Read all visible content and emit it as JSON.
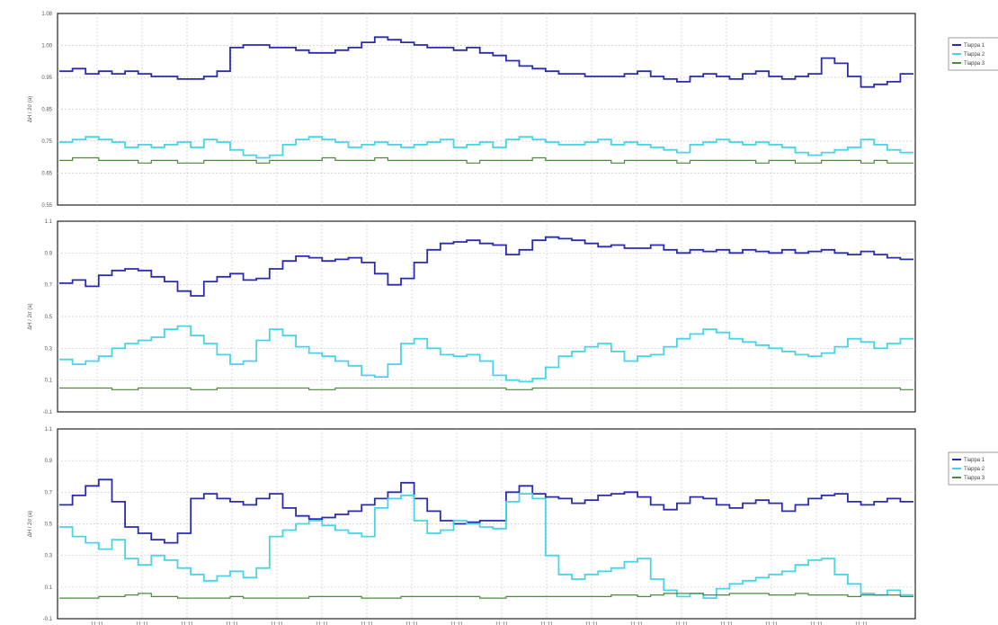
{
  "chart_data": [
    {
      "type": "line",
      "ylabel": "ΔH / 2σ (a)",
      "ylim": [
        0.35,
        1.08
      ],
      "yticks": [
        "1.08",
        "1.00",
        "0.95",
        "0.85",
        "0.75",
        "0.65",
        "0.55"
      ],
      "legend": "top-right",
      "grid": true,
      "series": [
        {
          "name": "Tiарра 1",
          "color": "#2b2bb0",
          "values": [
            0.86,
            0.87,
            0.85,
            0.86,
            0.85,
            0.86,
            0.85,
            0.84,
            0.84,
            0.83,
            0.83,
            0.84,
            0.86,
            0.95,
            0.96,
            0.96,
            0.95,
            0.95,
            0.94,
            0.93,
            0.93,
            0.94,
            0.95,
            0.97,
            0.99,
            0.98,
            0.97,
            0.96,
            0.95,
            0.95,
            0.94,
            0.95,
            0.93,
            0.92,
            0.9,
            0.88,
            0.87,
            0.86,
            0.85,
            0.85,
            0.84,
            0.84,
            0.84,
            0.85,
            0.86,
            0.84,
            0.83,
            0.82,
            0.84,
            0.85,
            0.84,
            0.83,
            0.85,
            0.86,
            0.84,
            0.83,
            0.84,
            0.85,
            0.91,
            0.89,
            0.84,
            0.8,
            0.81,
            0.82,
            0.85
          ]
        },
        {
          "name": "Tiарра 2",
          "color": "#48d4e4",
          "values": [
            0.59,
            0.6,
            0.61,
            0.6,
            0.59,
            0.57,
            0.58,
            0.57,
            0.58,
            0.59,
            0.57,
            0.6,
            0.59,
            0.56,
            0.54,
            0.53,
            0.54,
            0.58,
            0.6,
            0.61,
            0.6,
            0.59,
            0.57,
            0.58,
            0.59,
            0.58,
            0.57,
            0.58,
            0.59,
            0.6,
            0.57,
            0.58,
            0.59,
            0.57,
            0.6,
            0.61,
            0.6,
            0.59,
            0.58,
            0.58,
            0.59,
            0.6,
            0.58,
            0.59,
            0.58,
            0.57,
            0.56,
            0.55,
            0.58,
            0.59,
            0.6,
            0.59,
            0.58,
            0.59,
            0.58,
            0.57,
            0.55,
            0.54,
            0.55,
            0.56,
            0.57,
            0.6,
            0.58,
            0.56,
            0.55
          ]
        },
        {
          "name": "Tiарра 3",
          "color": "#4a8a3a",
          "values": [
            0.52,
            0.53,
            0.53,
            0.52,
            0.52,
            0.52,
            0.51,
            0.52,
            0.52,
            0.51,
            0.51,
            0.52,
            0.52,
            0.52,
            0.52,
            0.51,
            0.52,
            0.52,
            0.52,
            0.52,
            0.53,
            0.52,
            0.52,
            0.52,
            0.53,
            0.52,
            0.52,
            0.52,
            0.52,
            0.52,
            0.52,
            0.51,
            0.52,
            0.52,
            0.52,
            0.52,
            0.53,
            0.52,
            0.52,
            0.52,
            0.52,
            0.52,
            0.51,
            0.52,
            0.52,
            0.52,
            0.52,
            0.51,
            0.52,
            0.52,
            0.52,
            0.52,
            0.52,
            0.51,
            0.52,
            0.52,
            0.51,
            0.51,
            0.52,
            0.52,
            0.52,
            0.51,
            0.52,
            0.51,
            0.51
          ]
        }
      ]
    },
    {
      "type": "line",
      "ylabel": "ΔH / 2σ (a)",
      "ylim": [
        -0.1,
        1.1
      ],
      "yticks": [
        "1.1",
        "0.9",
        "0.7",
        "0.5",
        "0.3",
        "0.1",
        "-0.1"
      ],
      "grid": true,
      "series": [
        {
          "name": "Tiарра 1",
          "color": "#2b2bb0",
          "values": [
            0.71,
            0.73,
            0.69,
            0.76,
            0.79,
            0.8,
            0.79,
            0.75,
            0.72,
            0.66,
            0.63,
            0.72,
            0.75,
            0.77,
            0.73,
            0.74,
            0.8,
            0.85,
            0.88,
            0.87,
            0.85,
            0.86,
            0.87,
            0.84,
            0.77,
            0.7,
            0.74,
            0.84,
            0.92,
            0.96,
            0.97,
            0.98,
            0.96,
            0.95,
            0.89,
            0.92,
            0.98,
            1.0,
            0.99,
            0.98,
            0.96,
            0.94,
            0.95,
            0.93,
            0.93,
            0.95,
            0.92,
            0.9,
            0.92,
            0.91,
            0.92,
            0.9,
            0.92,
            0.91,
            0.9,
            0.92,
            0.9,
            0.91,
            0.92,
            0.9,
            0.89,
            0.91,
            0.89,
            0.87,
            0.86
          ]
        },
        {
          "name": "Tiарра 2",
          "color": "#48d4e4",
          "values": [
            0.23,
            0.2,
            0.22,
            0.25,
            0.3,
            0.33,
            0.35,
            0.37,
            0.42,
            0.44,
            0.38,
            0.33,
            0.26,
            0.2,
            0.22,
            0.35,
            0.42,
            0.38,
            0.31,
            0.27,
            0.25,
            0.22,
            0.19,
            0.13,
            0.12,
            0.2,
            0.33,
            0.36,
            0.3,
            0.26,
            0.25,
            0.26,
            0.22,
            0.13,
            0.1,
            0.09,
            0.11,
            0.18,
            0.25,
            0.28,
            0.31,
            0.33,
            0.28,
            0.22,
            0.25,
            0.26,
            0.31,
            0.36,
            0.39,
            0.42,
            0.4,
            0.36,
            0.34,
            0.32,
            0.3,
            0.28,
            0.26,
            0.25,
            0.27,
            0.31,
            0.36,
            0.34,
            0.3,
            0.33,
            0.36
          ]
        },
        {
          "name": "Tiарра 3",
          "color": "#4a8a3a",
          "values": [
            0.05,
            0.05,
            0.05,
            0.05,
            0.04,
            0.04,
            0.05,
            0.05,
            0.05,
            0.05,
            0.04,
            0.04,
            0.05,
            0.05,
            0.05,
            0.05,
            0.05,
            0.05,
            0.05,
            0.04,
            0.04,
            0.05,
            0.05,
            0.05,
            0.05,
            0.05,
            0.05,
            0.05,
            0.05,
            0.05,
            0.05,
            0.05,
            0.05,
            0.05,
            0.04,
            0.04,
            0.05,
            0.05,
            0.05,
            0.05,
            0.05,
            0.05,
            0.05,
            0.05,
            0.05,
            0.05,
            0.05,
            0.05,
            0.05,
            0.05,
            0.05,
            0.05,
            0.05,
            0.05,
            0.05,
            0.05,
            0.05,
            0.05,
            0.05,
            0.05,
            0.05,
            0.05,
            0.05,
            0.05,
            0.04
          ]
        }
      ]
    },
    {
      "type": "line",
      "ylabel": "ΔH / 2σ (a)",
      "ylim": [
        -0.1,
        1.1
      ],
      "yticks": [
        "1.1",
        "0.9",
        "0.7",
        "0.5",
        "0.3",
        "0.1",
        "-0.1"
      ],
      "legend": "top-right",
      "grid": true,
      "xticks": [
        "11:11",
        "11:11",
        "11:11",
        "11:11",
        "11:11",
        "11:11",
        "11:11",
        "11:11",
        "11:11",
        "11:11",
        "11:11",
        "11:11",
        "11:11",
        "11:11",
        "11:11",
        "11:11",
        "11:11",
        "11:11"
      ],
      "series": [
        {
          "name": "Tiарра 1",
          "color": "#2b2bb0",
          "values": [
            0.62,
            0.68,
            0.74,
            0.78,
            0.64,
            0.48,
            0.44,
            0.4,
            0.38,
            0.44,
            0.66,
            0.69,
            0.66,
            0.64,
            0.62,
            0.66,
            0.69,
            0.6,
            0.55,
            0.53,
            0.54,
            0.56,
            0.58,
            0.62,
            0.66,
            0.7,
            0.76,
            0.66,
            0.58,
            0.52,
            0.5,
            0.51,
            0.52,
            0.52,
            0.7,
            0.74,
            0.69,
            0.67,
            0.66,
            0.63,
            0.65,
            0.68,
            0.69,
            0.7,
            0.67,
            0.62,
            0.59,
            0.63,
            0.67,
            0.66,
            0.62,
            0.6,
            0.63,
            0.65,
            0.63,
            0.58,
            0.62,
            0.66,
            0.68,
            0.69,
            0.64,
            0.62,
            0.64,
            0.66,
            0.64
          ]
        },
        {
          "name": "Tiарра 2",
          "color": "#48d4e4",
          "values": [
            0.48,
            0.42,
            0.38,
            0.34,
            0.4,
            0.28,
            0.24,
            0.3,
            0.27,
            0.22,
            0.18,
            0.14,
            0.17,
            0.2,
            0.16,
            0.22,
            0.42,
            0.46,
            0.5,
            0.52,
            0.49,
            0.46,
            0.44,
            0.42,
            0.6,
            0.66,
            0.68,
            0.52,
            0.44,
            0.46,
            0.52,
            0.5,
            0.48,
            0.47,
            0.64,
            0.69,
            0.66,
            0.3,
            0.18,
            0.15,
            0.18,
            0.2,
            0.22,
            0.26,
            0.28,
            0.15,
            0.08,
            0.04,
            0.06,
            0.03,
            0.09,
            0.12,
            0.14,
            0.16,
            0.18,
            0.2,
            0.24,
            0.27,
            0.28,
            0.18,
            0.12,
            0.06,
            0.05,
            0.08,
            0.05
          ]
        },
        {
          "name": "Tiарра 3",
          "color": "#4a8a3a",
          "values": [
            0.03,
            0.03,
            0.03,
            0.04,
            0.04,
            0.05,
            0.06,
            0.04,
            0.04,
            0.03,
            0.03,
            0.03,
            0.03,
            0.04,
            0.03,
            0.03,
            0.03,
            0.03,
            0.03,
            0.04,
            0.04,
            0.04,
            0.04,
            0.03,
            0.03,
            0.03,
            0.04,
            0.04,
            0.04,
            0.04,
            0.04,
            0.04,
            0.03,
            0.03,
            0.04,
            0.04,
            0.04,
            0.04,
            0.04,
            0.04,
            0.04,
            0.04,
            0.05,
            0.05,
            0.04,
            0.05,
            0.06,
            0.06,
            0.06,
            0.05,
            0.05,
            0.06,
            0.06,
            0.06,
            0.05,
            0.05,
            0.06,
            0.05,
            0.05,
            0.05,
            0.04,
            0.05,
            0.05,
            0.05,
            0.04
          ]
        }
      ]
    }
  ]
}
